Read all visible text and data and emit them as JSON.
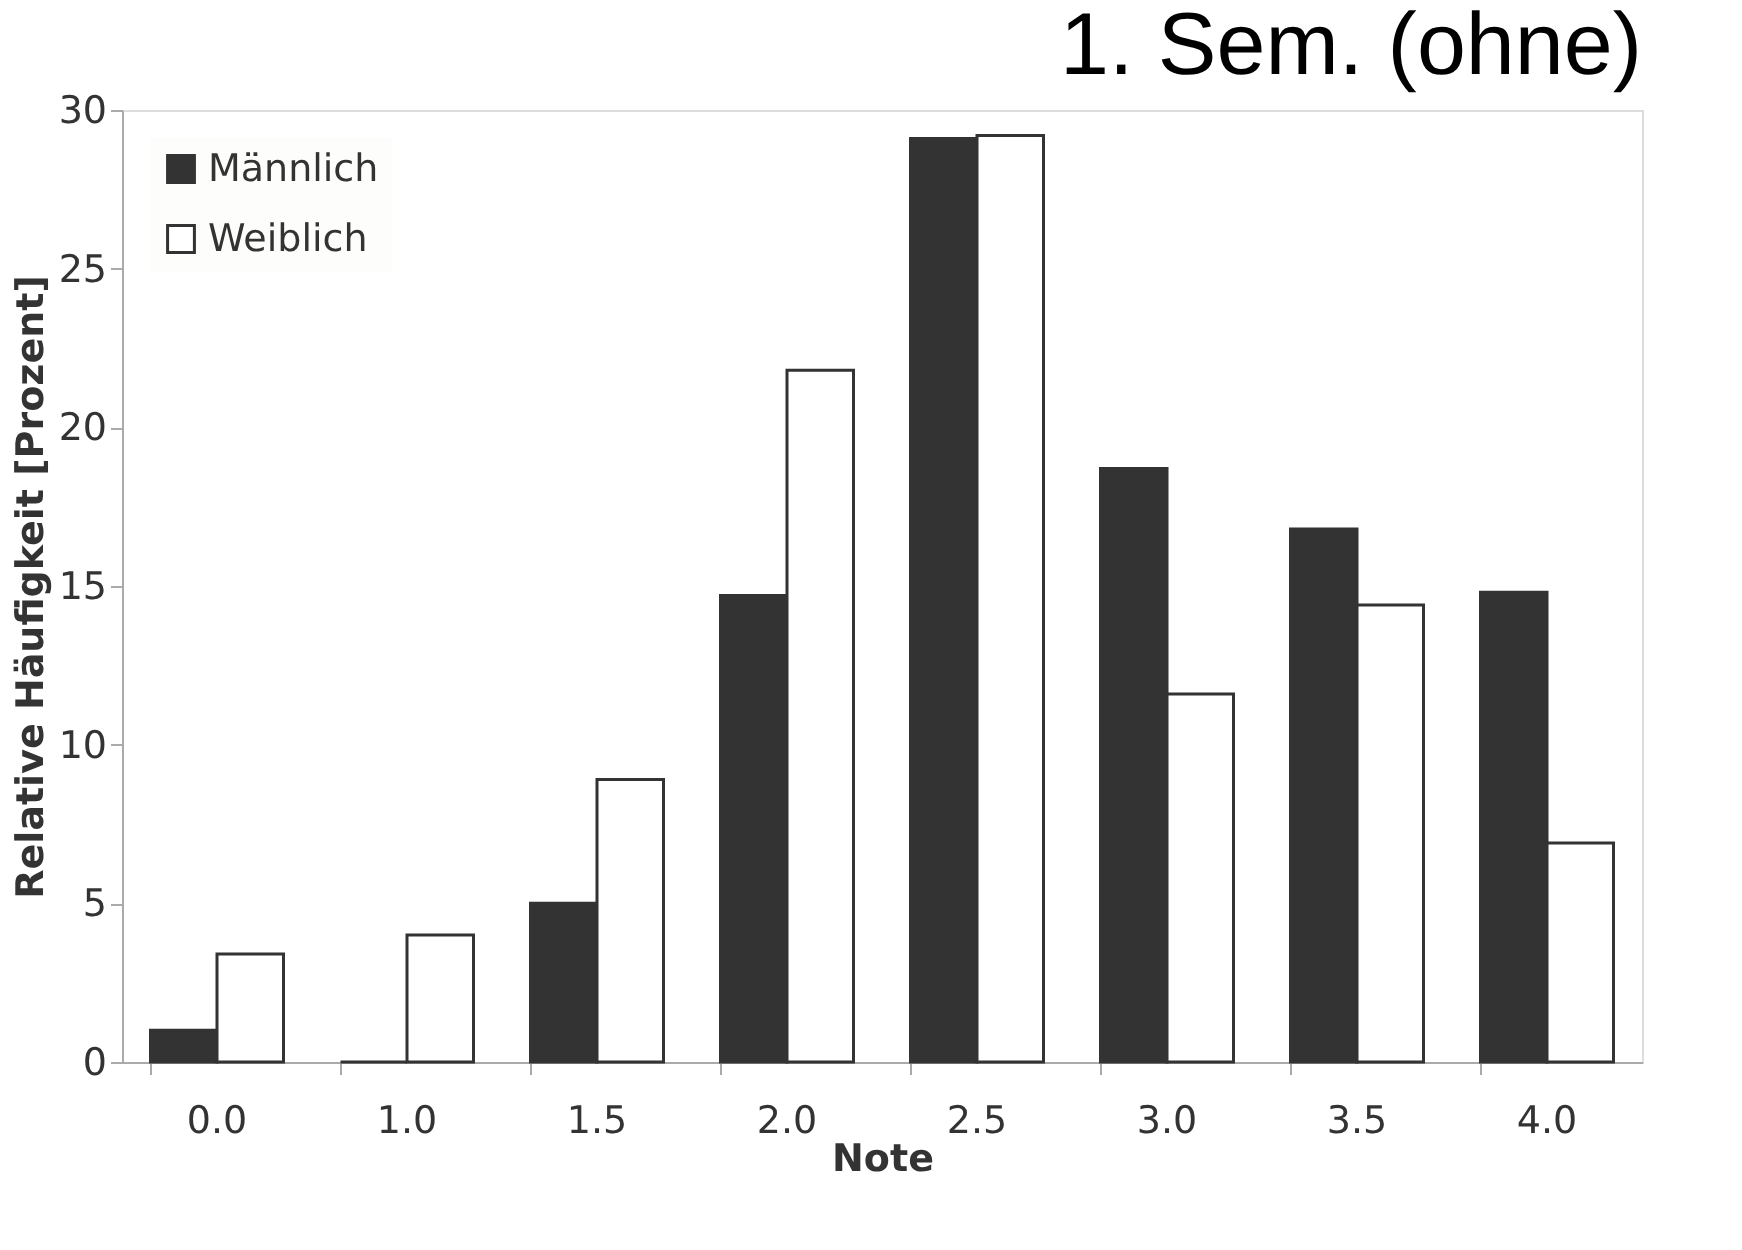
{
  "chart_data": {
    "type": "bar",
    "title": "1. Sem. (ohne)",
    "xlabel": "Note",
    "ylabel": "Relative Häufigkeit [Prozent]",
    "categories": [
      "0.0",
      "1.0",
      "1.5",
      "2.0",
      "2.5",
      "3.0",
      "3.5",
      "4.0"
    ],
    "series": [
      {
        "name": "Männlich",
        "color": "#333333",
        "values": [
          1.0,
          0,
          5.0,
          14.7,
          29.1,
          18.7,
          16.8,
          14.8
        ]
      },
      {
        "name": "Weiblich",
        "color": "#ffffff",
        "values": [
          3.4,
          4.0,
          8.9,
          21.8,
          29.2,
          11.6,
          14.4,
          6.9
        ]
      }
    ],
    "ylim": [
      0,
      30
    ],
    "yticks": [
      0,
      5,
      10,
      15,
      20,
      25,
      30
    ],
    "grid": false,
    "legend": "top left"
  }
}
